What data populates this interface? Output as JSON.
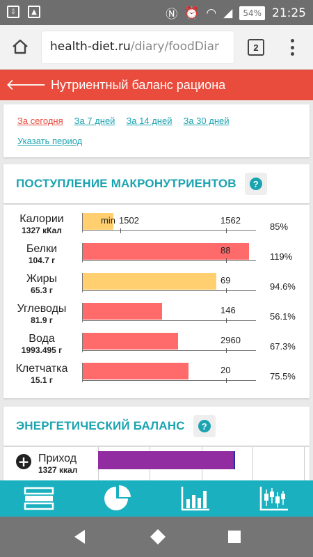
{
  "status_bar": {
    "time": "21:25",
    "battery": "54%",
    "icons": [
      "download-icon",
      "image-icon",
      "nfc-icon",
      "alarm-icon",
      "wifi-icon",
      "signal-icon"
    ]
  },
  "browser": {
    "url_domain": "health-diet.ru",
    "url_path": "/diary/foodDiar",
    "tabs_count": "2"
  },
  "header": {
    "title": "Нутриентный баланс рациона"
  },
  "periods": {
    "today": "За сегодня",
    "days7": "За 7 дней",
    "days14": "За 14 дней",
    "days30": "За 30 дней",
    "custom": "Указать период"
  },
  "macro_section": {
    "title": "ПОСТУПЛЕНИЕ МАКРОНУТРИЕНТОВ",
    "help": "?",
    "rows": [
      {
        "name": "Калории",
        "value": "1327 кКал",
        "min_label": "min",
        "label_a": "1502",
        "label_b": "1562",
        "percent": "85%",
        "fill_frac": 0.18,
        "color": "#ffcf70"
      },
      {
        "name": "Белки",
        "value": "104.7 г",
        "label_b": "88",
        "percent": "119%",
        "fill_frac": 0.96,
        "color": "#ff6b6b"
      },
      {
        "name": "Жиры",
        "value": "65.3 г",
        "label_b": "69",
        "percent": "94.6%",
        "fill_frac": 0.77,
        "color": "#ffcf70"
      },
      {
        "name": "Углеводы",
        "value": "81.9 г",
        "label_b": "146",
        "percent": "56.1%",
        "fill_frac": 0.46,
        "color": "#ff6b6b"
      },
      {
        "name": "Вода",
        "value": "1993.495 г",
        "label_b": "2960",
        "percent": "67.3%",
        "fill_frac": 0.55,
        "color": "#ff6b6b"
      },
      {
        "name": "Клетчатка",
        "value": "15.1 г",
        "label_b": "20",
        "percent": "75.5%",
        "fill_frac": 0.61,
        "color": "#ff6b6b"
      }
    ]
  },
  "energy_section": {
    "title": "ЭНЕРГЕТИЧЕСКИЙ БАЛАНС",
    "help": "?",
    "row_name": "Приход",
    "row_value": "1327 ккал",
    "plus": "+"
  },
  "bottom_nav": [
    "list-icon",
    "pie-chart-icon",
    "bar-chart-icon",
    "candlestick-chart-icon"
  ],
  "colors": {
    "accent": "#1aa3b0",
    "header": "#e94b3c",
    "bar_red": "#ff6b6b",
    "bar_yellow": "#ffcf70",
    "energy_purple": "#922da1"
  }
}
